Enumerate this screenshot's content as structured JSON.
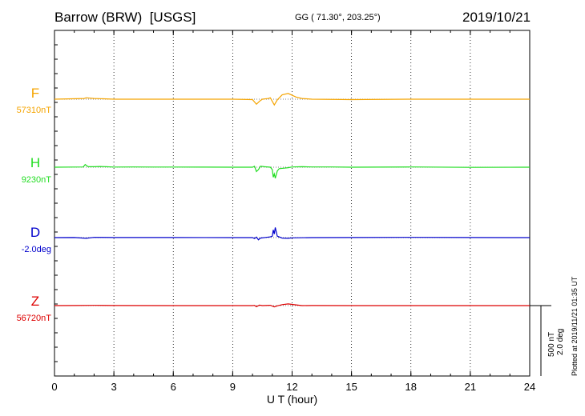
{
  "header": {
    "station": "Barrow (BRW)",
    "source": "[USGS]",
    "coords": "GG ( 71.30°, 203.25°)",
    "date": "2019/10/21"
  },
  "plotted_note": "Plotted at 2019/11/21 01:35 UT",
  "scale": {
    "nt": "500 nT",
    "deg": "2.0 deg"
  },
  "chart_data": {
    "type": "line",
    "xlabel": "U T (hour)",
    "xlim": [
      0,
      24
    ],
    "xticks": [
      0,
      3,
      6,
      9,
      12,
      15,
      18,
      21,
      24
    ],
    "grid": "vertical dotted every 3 h",
    "series": [
      {
        "name": "F",
        "baseline": "57310nT",
        "color": "#f5a400",
        "points": [
          [
            0,
            0
          ],
          [
            1.5,
            -10
          ],
          [
            1.6,
            -20
          ],
          [
            2,
            -10
          ],
          [
            2.5,
            -5
          ],
          [
            3,
            0
          ],
          [
            6,
            0
          ],
          [
            9,
            0
          ],
          [
            10,
            5
          ],
          [
            10.2,
            70
          ],
          [
            10.35,
            30
          ],
          [
            10.5,
            0
          ],
          [
            10.8,
            -10
          ],
          [
            10.9,
            -20
          ],
          [
            11.1,
            80
          ],
          [
            11.25,
            10
          ],
          [
            11.5,
            -60
          ],
          [
            11.8,
            -80
          ],
          [
            12.2,
            -30
          ],
          [
            12.5,
            -10
          ],
          [
            13,
            0
          ],
          [
            15,
            5
          ],
          [
            18,
            0
          ],
          [
            21,
            0
          ],
          [
            24,
            0
          ]
        ]
      },
      {
        "name": "H",
        "baseline": "9230nT",
        "color": "#22dd22",
        "points": [
          [
            0,
            0
          ],
          [
            1,
            -5
          ],
          [
            1.45,
            -10
          ],
          [
            1.55,
            -110
          ],
          [
            1.7,
            -20
          ],
          [
            2,
            -20
          ],
          [
            2.3,
            -30
          ],
          [
            2.6,
            -20
          ],
          [
            3,
            -5
          ],
          [
            4,
            -10
          ],
          [
            5,
            -5
          ],
          [
            6,
            -5
          ],
          [
            9,
            0
          ],
          [
            10,
            0
          ],
          [
            10.1,
            -40
          ],
          [
            10.2,
            180
          ],
          [
            10.3,
            100
          ],
          [
            10.4,
            -40
          ],
          [
            10.6,
            -20
          ],
          [
            10.9,
            0
          ],
          [
            11,
            100
          ],
          [
            11.05,
            420
          ],
          [
            11.1,
            280
          ],
          [
            11.15,
            460
          ],
          [
            11.25,
            160
          ],
          [
            11.35,
            60
          ],
          [
            11.6,
            40
          ],
          [
            11.8,
            20
          ],
          [
            12,
            -10
          ],
          [
            12.5,
            -20
          ],
          [
            13,
            -10
          ],
          [
            14,
            -10
          ],
          [
            15,
            0
          ],
          [
            18,
            -10
          ],
          [
            21,
            5
          ],
          [
            24,
            0
          ]
        ]
      },
      {
        "name": "D",
        "baseline": "-2.0deg",
        "color": "#0000cc",
        "points": [
          [
            0,
            0
          ],
          [
            1,
            -5
          ],
          [
            1.6,
            30
          ],
          [
            2,
            -10
          ],
          [
            3,
            -5
          ],
          [
            6,
            -5
          ],
          [
            9,
            0
          ],
          [
            10,
            0
          ],
          [
            10.1,
            40
          ],
          [
            10.2,
            -20
          ],
          [
            10.3,
            90
          ],
          [
            10.4,
            20
          ],
          [
            10.7,
            -10
          ],
          [
            10.9,
            -30
          ],
          [
            11,
            -60
          ],
          [
            11.05,
            -320
          ],
          [
            11.1,
            -150
          ],
          [
            11.15,
            -420
          ],
          [
            11.25,
            -60
          ],
          [
            11.5,
            20
          ],
          [
            11.8,
            30
          ],
          [
            12,
            10
          ],
          [
            13,
            0
          ],
          [
            15,
            -5
          ],
          [
            18,
            -10
          ],
          [
            21,
            -5
          ],
          [
            24,
            0
          ]
        ]
      },
      {
        "name": "Z",
        "baseline": "56720nT",
        "color": "#dd0000",
        "points": [
          [
            0,
            0
          ],
          [
            1,
            -5
          ],
          [
            2,
            -10
          ],
          [
            3,
            -3
          ],
          [
            6,
            0
          ],
          [
            9,
            0
          ],
          [
            10,
            0
          ],
          [
            10.1,
            -10
          ],
          [
            10.2,
            45
          ],
          [
            10.35,
            -20
          ],
          [
            10.5,
            0
          ],
          [
            10.9,
            -15
          ],
          [
            11.1,
            55
          ],
          [
            11.25,
            10
          ],
          [
            11.5,
            -40
          ],
          [
            11.8,
            -70
          ],
          [
            12.2,
            -30
          ],
          [
            12.5,
            0
          ],
          [
            13,
            -5
          ],
          [
            15,
            0
          ],
          [
            18,
            0
          ],
          [
            21,
            0
          ],
          [
            24,
            0
          ]
        ]
      }
    ]
  }
}
